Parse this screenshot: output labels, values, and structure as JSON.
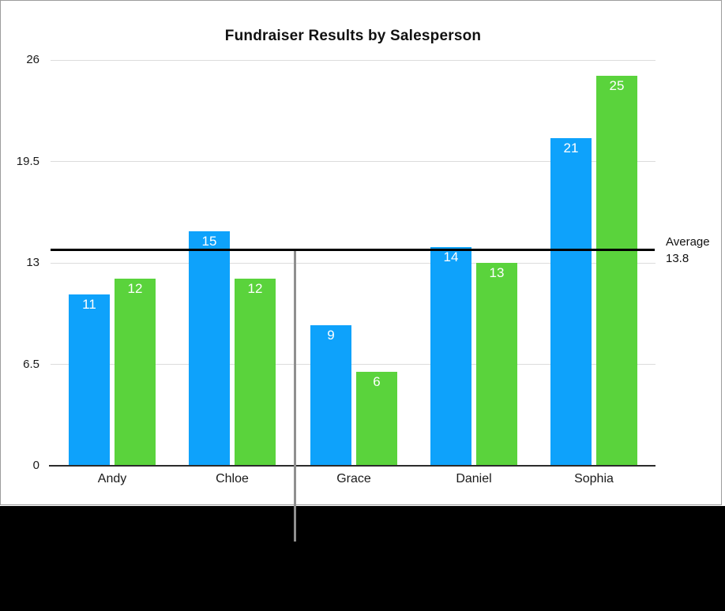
{
  "chart_data": {
    "type": "bar",
    "title": "Fundraiser Results by Salesperson",
    "categories": [
      "Andy",
      "Chloe",
      "Grace",
      "Daniel",
      "Sophia"
    ],
    "series": [
      {
        "name": "series-1-blue",
        "color": "#0ea2fb",
        "values": [
          11,
          15,
          9,
          14,
          21
        ]
      },
      {
        "name": "series-2-green",
        "color": "#5ad33c",
        "values": [
          12,
          12,
          6,
          13,
          25
        ]
      }
    ],
    "value_labels": [
      "11",
      "15",
      "9",
      "14",
      "21",
      "12",
      "12",
      "6",
      "13",
      "25"
    ],
    "y_ticks": [
      {
        "label": "26",
        "value": 26
      },
      {
        "label": "19.5",
        "value": 19.5
      },
      {
        "label": "13",
        "value": 13
      },
      {
        "label": "6.5",
        "value": 6.5
      },
      {
        "label": "0",
        "value": 0
      }
    ],
    "ylim": [
      0,
      26
    ],
    "grid": true,
    "legend": "none",
    "average_line": {
      "value": 13.8,
      "label_line1": "Average",
      "label_line2": "13.8"
    }
  },
  "colors": {
    "bar_blue": "#0ea2fb",
    "bar_green": "#5ad33c",
    "average_line": "#000000",
    "gridline": "#dcdcdc",
    "axis_line": "#2b2b2b",
    "callout_line": "#8f8f8f",
    "frame_border": "#9c9c9c",
    "bottom_band": "#000000",
    "value_label_text": "#ffffff"
  }
}
